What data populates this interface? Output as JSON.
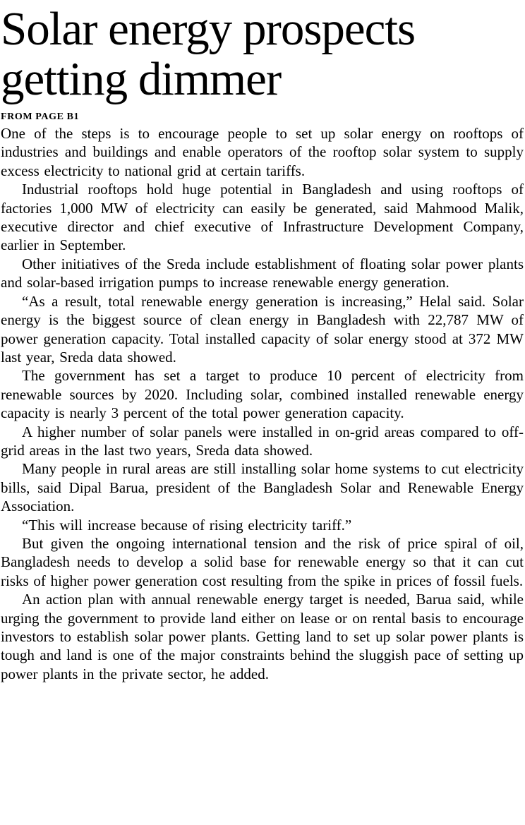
{
  "colors": {
    "text": "#000000",
    "background": "#ffffff"
  },
  "article": {
    "headline": "Solar energy prospects getting dimmer",
    "kicker": "FROM PAGE B1",
    "paragraphs": [
      "One of the steps is to encourage people to set up solar energy on rooftops of industries and buildings and enable operators of the rooftop solar system to supply excess electricity to national grid at certain tariffs.",
      "Industrial rooftops hold huge potential in Bangladesh and using rooftops of factories 1,000 MW of electricity can easily be generated, said Mahmood Malik, executive director and chief executive of Infrastructure Development Company, earlier in September.",
      "Other initiatives of the Sreda include establishment of floating solar power plants and solar-based irrigation pumps to increase renewable energy generation.",
      "“As a result, total renewable energy generation is increasing,” Helal said. Solar energy is the biggest source of clean energy in Bangladesh with 22,787 MW of power generation capacity. Total installed capacity of solar energy stood at 372 MW last year, Sreda data showed.",
      "The government has set a target to produce 10 percent of electricity from renewable sources by 2020. Including solar, combined installed renewable energy capacity is nearly 3 percent of the total power generation capacity.",
      "A higher number of solar panels were installed in on-grid areas compared to off-grid areas in the last two years, Sreda data showed.",
      "Many people in rural areas are still installing solar home systems to cut electricity bills, said Dipal Barua, president of the Bangladesh Solar and Renewable Energy Association.",
      "“This will increase because of rising electricity tariff.”",
      "But given the ongoing international tension and the risk of price spiral of oil, Bangladesh needs to develop a solid base for renewable energy so that it can cut risks of higher power generation cost resulting from the spike in prices of fossil fuels.",
      "An action plan with annual renewable energy target is needed, Barua said, while urging the government to provide land either on lease or on rental basis to encourage investors to establish solar power plants. Getting land to set up solar power plants is tough and land is one of the major constraints behind the sluggish pace of setting up power plants in the private sector, he added."
    ]
  }
}
